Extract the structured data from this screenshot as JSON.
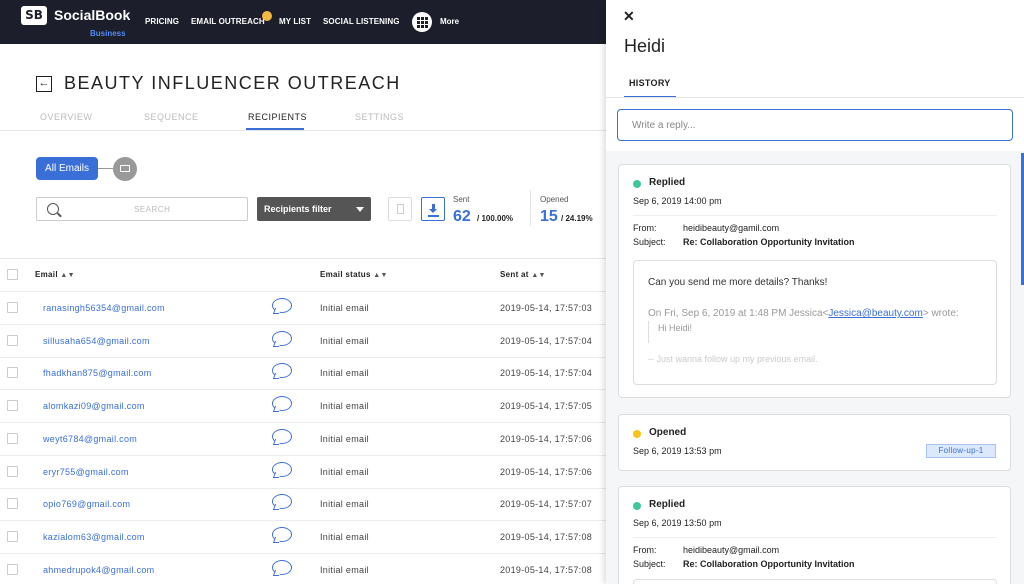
{
  "brand": {
    "name": "SocialBook",
    "sub": "Business",
    "logo_text": "SB"
  },
  "nav": {
    "items": [
      "PRICING",
      "EMAIL OUTREACH",
      "MY LIST",
      "SOCIAL LISTENING"
    ],
    "more": "More"
  },
  "page": {
    "title": "BEAUTY INFLUENCER OUTREACH",
    "tabs": [
      "OVERVIEW",
      "SEQUENCE",
      "RECIPIENTS",
      "SETTINGS"
    ],
    "active_tab": "RECIPIENTS"
  },
  "filters": {
    "all_emails": "All Emails",
    "search_placeholder": "SEARCH",
    "recipients_filter": "Recipients filter"
  },
  "stats": {
    "sent": {
      "label": "Sent",
      "value": "62",
      "pct": "/ 100.00%"
    },
    "opened": {
      "label": "Opened",
      "value": "15",
      "pct": "/ 24.19%"
    }
  },
  "table": {
    "headers": [
      "Email",
      "Email status",
      "Sent at"
    ],
    "rows": [
      {
        "email": "ranasingh56354@gmail.com",
        "status": "Initial email",
        "sent": "2019-05-14, 17:57:03"
      },
      {
        "email": "sillusaha654@gmail.com",
        "status": "Initial email",
        "sent": "2019-05-14, 17:57:04"
      },
      {
        "email": "fhadkhan875@gmail.com",
        "status": "Initial email",
        "sent": "2019-05-14, 17:57:04"
      },
      {
        "email": "alomkazi09@gmail.com",
        "status": "Initial email",
        "sent": "2019-05-14, 17:57:05"
      },
      {
        "email": "weyt6784@gmail.com",
        "status": "Initial email",
        "sent": "2019-05-14, 17:57:06"
      },
      {
        "email": "eryr755@gmail.com",
        "status": "Initial email",
        "sent": "2019-05-14, 17:57:06"
      },
      {
        "email": "opio769@gmail.com",
        "status": "Initial email",
        "sent": "2019-05-14, 17:57:07"
      },
      {
        "email": "kazialom63@gmail.com",
        "status": "Initial email",
        "sent": "2019-05-14, 17:57:08"
      },
      {
        "email": "ahmedrupok4@gmail.com",
        "status": "Initial email",
        "sent": "2019-05-14, 17:57:08"
      }
    ]
  },
  "panel": {
    "name": "Heidi",
    "tab": "HISTORY",
    "reply_placeholder": "Write a reply...",
    "cards": [
      {
        "status": "Replied",
        "date": "Sep 6, 2019 14:00 pm",
        "from_label": "From:",
        "from": "heidibeauty@gamil.com",
        "subject_label": "Subject:",
        "subject": "Re: Collaboration Opportunity Invitation",
        "body": "Can you send me more details? Thanks!",
        "quote_prefix": "On Fri, Sep 6, 2019 at 1:48 PM Jessica<",
        "quote_link": "Jessica@beauty.com",
        "quote_suffix": "> wrote:",
        "quote_hi": "Hi Heidi!",
        "quote_follow": "-- Just wanna follow up my previous email."
      },
      {
        "status": "Opened",
        "date": "Sep 6, 2019 13:53 pm",
        "tag": "Follow-up-1"
      },
      {
        "status": "Replied",
        "date": "Sep 6, 2019 13:50 pm",
        "from_label": "From:",
        "from": "heidibeauty@gmail.com",
        "subject_label": "Subject:",
        "subject": "Re: Collaboration Opportunity Invitation"
      }
    ]
  },
  "colors": {
    "accent": "#3a6fd8",
    "nav_bg": "#1c1f2b",
    "replied": "#3ec99a",
    "opened": "#f5c518"
  }
}
